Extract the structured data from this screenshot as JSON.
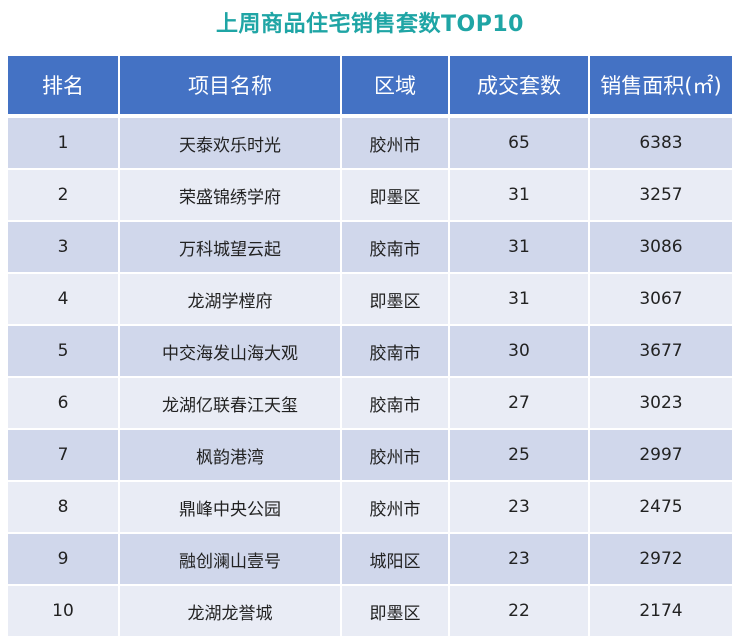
{
  "title": "上周商品住宅销售套数TOP10",
  "colors": {
    "title": "#1fa5a5",
    "header_bg": "#4472c4",
    "row_odd": "#d0d7eb",
    "row_even": "#e9ecf5"
  },
  "table": {
    "headers": [
      "排名",
      "项目名称",
      "区域",
      "成交套数",
      "销售面积(㎡)"
    ],
    "rows": [
      [
        "1",
        "天泰欢乐时光",
        "胶州市",
        "65",
        "6383"
      ],
      [
        "2",
        "荣盛锦绣学府",
        "即墨区",
        "31",
        "3257"
      ],
      [
        "3",
        "万科城望云起",
        "胶南市",
        "31",
        "3086"
      ],
      [
        "4",
        "龙湖学樘府",
        "即墨区",
        "31",
        "3067"
      ],
      [
        "5",
        "中交海发山海大观",
        "胶南市",
        "30",
        "3677"
      ],
      [
        "6",
        "龙湖亿联春江天玺",
        "胶南市",
        "27",
        "3023"
      ],
      [
        "7",
        "枫韵港湾",
        "胶州市",
        "25",
        "2997"
      ],
      [
        "8",
        "鼎峰中央公园",
        "胶州市",
        "23",
        "2475"
      ],
      [
        "9",
        "融创澜山壹号",
        "城阳区",
        "23",
        "2972"
      ],
      [
        "10",
        "龙湖龙誉城",
        "即墨区",
        "22",
        "2174"
      ]
    ]
  }
}
